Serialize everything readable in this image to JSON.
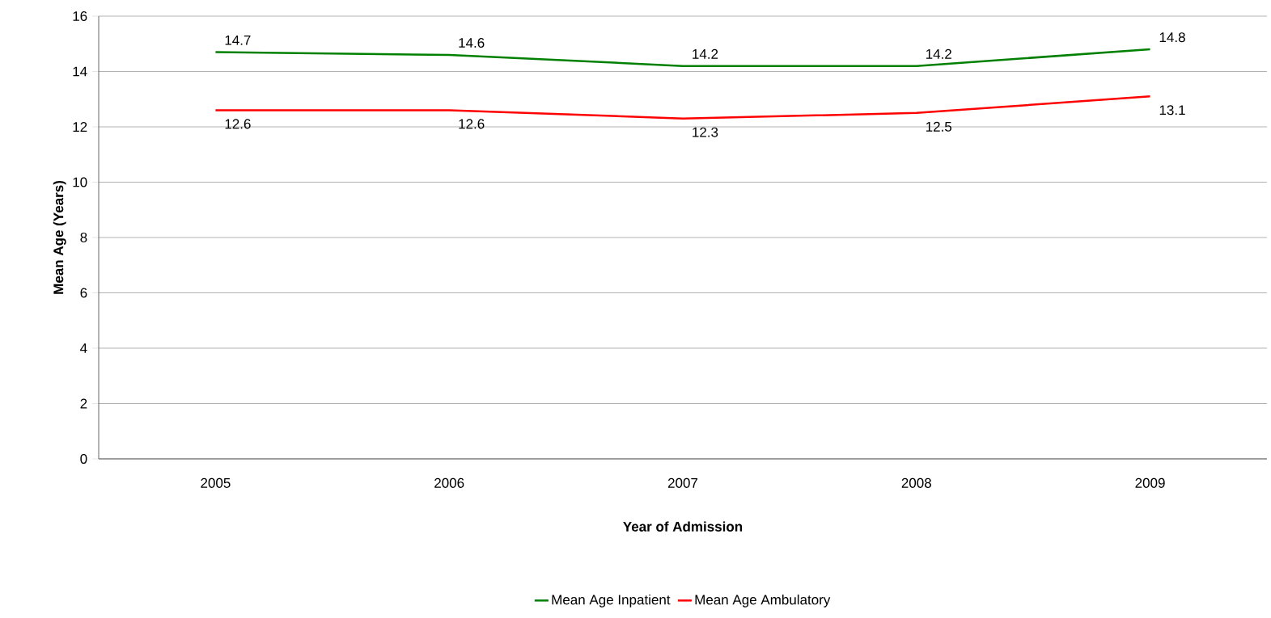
{
  "chart_data": {
    "type": "line",
    "xlabel": "Year of Admission",
    "ylabel": "Mean Age (Years)",
    "categories": [
      "2005",
      "2006",
      "2007",
      "2008",
      "2009"
    ],
    "series": [
      {
        "name": "Mean Age Inpatient",
        "color": "#008000",
        "values": [
          14.7,
          14.6,
          14.2,
          14.2,
          14.8
        ]
      },
      {
        "name": "Mean Age Ambulatory",
        "color": "#ff0000",
        "values": [
          12.6,
          12.6,
          12.3,
          12.5,
          13.1
        ]
      }
    ],
    "ylim": [
      0,
      16
    ],
    "yticks": [
      0,
      2,
      4,
      6,
      8,
      10,
      12,
      14,
      16
    ],
    "grid": "y",
    "legend": "bottom",
    "data_labels": true,
    "marker": "none",
    "line_style": "solid"
  }
}
